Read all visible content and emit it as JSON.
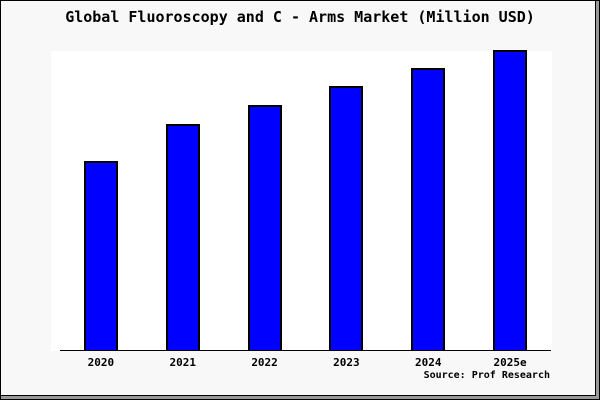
{
  "figure": {
    "title": "Global Fluoroscopy and C - Arms Market (Million USD)",
    "source": "Source: Prof Research"
  },
  "colors": {
    "background": "#f8f8f8",
    "plot_background": "#ffffff",
    "bar_fill": "#0000ff",
    "bar_border": "#000000",
    "axis": "#000000",
    "text": "#000000",
    "frame_shadow": "#999999"
  },
  "chart_data": {
    "type": "bar",
    "title": "Global Fluoroscopy and C - Arms Market (Million USD)",
    "categories": [
      "2020",
      "2021",
      "2022",
      "2023",
      "2024",
      "2025e"
    ],
    "values_pct_of_max": [
      63,
      75.3,
      81.7,
      88,
      94,
      100
    ],
    "xlabel": "",
    "ylabel": "",
    "y_axis_ticks_visible": false,
    "grid": false,
    "legend": false,
    "annotation": "Source: Prof Research"
  }
}
